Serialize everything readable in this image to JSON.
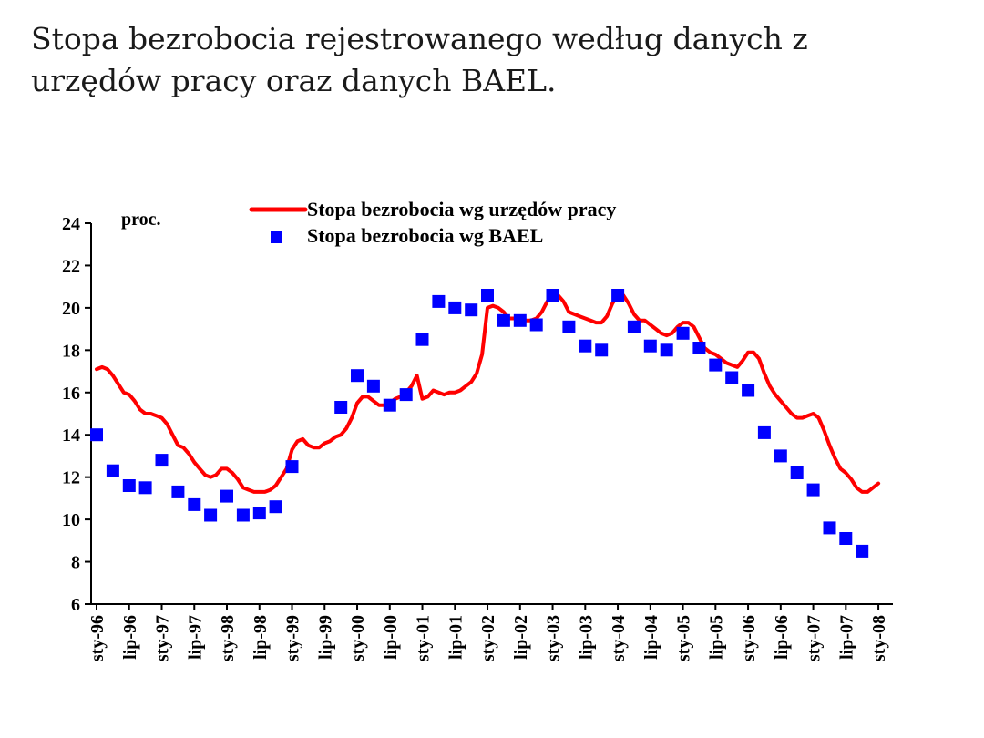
{
  "title": {
    "line1": "Stopa bezrobocia rejestrowanego według danych z",
    "line2": "urzędów pracy oraz danych BAEL."
  },
  "chart_data": {
    "type": "line",
    "unit_label": "proc.",
    "ylim": [
      6,
      24
    ],
    "yticks": [
      6,
      8,
      10,
      12,
      14,
      16,
      18,
      20,
      22,
      24
    ],
    "xlim_months": [
      0,
      146
    ],
    "xticks": [
      {
        "label": "sty-96",
        "m": 0
      },
      {
        "label": "lip-96",
        "m": 6
      },
      {
        "label": "sty-97",
        "m": 12
      },
      {
        "label": "lip-97",
        "m": 18
      },
      {
        "label": "sty-98",
        "m": 24
      },
      {
        "label": "lip-98",
        "m": 30
      },
      {
        "label": "sty-99",
        "m": 36
      },
      {
        "label": "lip-99",
        "m": 42
      },
      {
        "label": "sty-00",
        "m": 48
      },
      {
        "label": "lip-00",
        "m": 54
      },
      {
        "label": "sty-01",
        "m": 60
      },
      {
        "label": "lip-01",
        "m": 66
      },
      {
        "label": "sty-02",
        "m": 72
      },
      {
        "label": "lip-02",
        "m": 78
      },
      {
        "label": "sty-03",
        "m": 84
      },
      {
        "label": "lip-03",
        "m": 90
      },
      {
        "label": "sty-04",
        "m": 96
      },
      {
        "label": "lip-04",
        "m": 102
      },
      {
        "label": "sty-05",
        "m": 108
      },
      {
        "label": "lip-05",
        "m": 114
      },
      {
        "label": "sty-06",
        "m": 120
      },
      {
        "label": "lip-06",
        "m": 126
      },
      {
        "label": "sty-07",
        "m": 132
      },
      {
        "label": "lip-07",
        "m": 138
      },
      {
        "label": "sty-08",
        "m": 144
      }
    ],
    "legend_placement": "top-center",
    "series": [
      {
        "name": "Stopa bezrobocia wg urzędów pracy",
        "kind": "line",
        "color": "#ff0000",
        "points": [
          [
            0,
            17.1
          ],
          [
            1,
            17.2
          ],
          [
            2,
            17.1
          ],
          [
            3,
            16.8
          ],
          [
            4,
            16.4
          ],
          [
            5,
            16.0
          ],
          [
            6,
            15.9
          ],
          [
            7,
            15.6
          ],
          [
            8,
            15.2
          ],
          [
            9,
            15.0
          ],
          [
            10,
            15.0
          ],
          [
            11,
            14.9
          ],
          [
            12,
            14.8
          ],
          [
            13,
            14.5
          ],
          [
            14,
            14.0
          ],
          [
            15,
            13.5
          ],
          [
            16,
            13.4
          ],
          [
            17,
            13.1
          ],
          [
            18,
            12.7
          ],
          [
            19,
            12.4
          ],
          [
            20,
            12.1
          ],
          [
            21,
            12.0
          ],
          [
            22,
            12.1
          ],
          [
            23,
            12.4
          ],
          [
            24,
            12.4
          ],
          [
            25,
            12.2
          ],
          [
            26,
            11.9
          ],
          [
            27,
            11.5
          ],
          [
            28,
            11.4
          ],
          [
            29,
            11.3
          ],
          [
            30,
            11.3
          ],
          [
            31,
            11.3
          ],
          [
            32,
            11.4
          ],
          [
            33,
            11.6
          ],
          [
            34,
            12.0
          ],
          [
            35,
            12.4
          ],
          [
            36,
            13.3
          ],
          [
            37,
            13.7
          ],
          [
            38,
            13.8
          ],
          [
            39,
            13.5
          ],
          [
            40,
            13.4
          ],
          [
            41,
            13.4
          ],
          [
            42,
            13.6
          ],
          [
            43,
            13.7
          ],
          [
            44,
            13.9
          ],
          [
            45,
            14.0
          ],
          [
            46,
            14.3
          ],
          [
            47,
            14.8
          ],
          [
            48,
            15.5
          ],
          [
            49,
            15.8
          ],
          [
            50,
            15.8
          ],
          [
            51,
            15.6
          ],
          [
            52,
            15.4
          ],
          [
            53,
            15.4
          ],
          [
            54,
            15.5
          ],
          [
            55,
            15.7
          ],
          [
            56,
            15.8
          ],
          [
            57,
            16.0
          ],
          [
            58,
            16.3
          ],
          [
            59,
            16.8
          ],
          [
            60,
            15.7
          ],
          [
            61,
            15.8
          ],
          [
            62,
            16.1
          ],
          [
            63,
            16.0
          ],
          [
            64,
            15.9
          ],
          [
            65,
            16.0
          ],
          [
            66,
            16.0
          ],
          [
            67,
            16.1
          ],
          [
            68,
            16.3
          ],
          [
            69,
            16.5
          ],
          [
            70,
            16.9
          ],
          [
            71,
            17.8
          ],
          [
            72,
            20.0
          ],
          [
            73,
            20.1
          ],
          [
            74,
            20.0
          ],
          [
            75,
            19.8
          ],
          [
            76,
            19.5
          ],
          [
            77,
            19.5
          ],
          [
            78,
            19.5
          ],
          [
            79,
            19.4
          ],
          [
            80,
            19.4
          ],
          [
            81,
            19.5
          ],
          [
            82,
            19.8
          ],
          [
            83,
            20.3
          ],
          [
            84,
            20.7
          ],
          [
            85,
            20.6
          ],
          [
            86,
            20.3
          ],
          [
            87,
            19.8
          ],
          [
            88,
            19.7
          ],
          [
            89,
            19.6
          ],
          [
            90,
            19.5
          ],
          [
            91,
            19.4
          ],
          [
            92,
            19.3
          ],
          [
            93,
            19.3
          ],
          [
            94,
            19.6
          ],
          [
            95,
            20.2
          ],
          [
            96,
            20.6
          ],
          [
            97,
            20.6
          ],
          [
            98,
            20.2
          ],
          [
            99,
            19.7
          ],
          [
            100,
            19.4
          ],
          [
            101,
            19.4
          ],
          [
            102,
            19.2
          ],
          [
            103,
            19.0
          ],
          [
            104,
            18.8
          ],
          [
            105,
            18.7
          ],
          [
            106,
            18.8
          ],
          [
            107,
            19.1
          ],
          [
            108,
            19.3
          ],
          [
            109,
            19.3
          ],
          [
            110,
            19.1
          ],
          [
            111,
            18.6
          ],
          [
            112,
            18.1
          ],
          [
            113,
            17.9
          ],
          [
            114,
            17.8
          ],
          [
            115,
            17.6
          ],
          [
            116,
            17.4
          ],
          [
            117,
            17.3
          ],
          [
            118,
            17.2
          ],
          [
            119,
            17.5
          ],
          [
            120,
            17.9
          ],
          [
            121,
            17.9
          ],
          [
            122,
            17.6
          ],
          [
            123,
            16.9
          ],
          [
            124,
            16.3
          ],
          [
            125,
            15.9
          ],
          [
            126,
            15.6
          ],
          [
            127,
            15.3
          ],
          [
            128,
            15.0
          ],
          [
            129,
            14.8
          ],
          [
            130,
            14.8
          ],
          [
            131,
            14.9
          ],
          [
            132,
            15.0
          ],
          [
            133,
            14.8
          ],
          [
            134,
            14.2
          ],
          [
            135,
            13.5
          ],
          [
            136,
            12.9
          ],
          [
            137,
            12.4
          ],
          [
            138,
            12.2
          ],
          [
            139,
            11.9
          ],
          [
            140,
            11.5
          ],
          [
            141,
            11.3
          ],
          [
            142,
            11.3
          ],
          [
            143,
            11.5
          ],
          [
            144,
            11.7
          ]
        ]
      },
      {
        "name": "Stopa bezrobocia wg BAEL",
        "kind": "scatter",
        "color": "#0000ff",
        "points": [
          [
            0,
            14.0
          ],
          [
            3,
            12.3
          ],
          [
            6,
            11.6
          ],
          [
            9,
            11.5
          ],
          [
            12,
            12.8
          ],
          [
            15,
            11.3
          ],
          [
            18,
            10.7
          ],
          [
            21,
            10.2
          ],
          [
            24,
            11.1
          ],
          [
            27,
            10.2
          ],
          [
            30,
            10.3
          ],
          [
            33,
            10.6
          ],
          [
            36,
            12.5
          ],
          [
            45,
            15.3
          ],
          [
            48,
            16.8
          ],
          [
            51,
            16.3
          ],
          [
            54,
            15.4
          ],
          [
            57,
            15.9
          ],
          [
            60,
            18.5
          ],
          [
            63,
            20.3
          ],
          [
            66,
            20.0
          ],
          [
            69,
            19.9
          ],
          [
            72,
            20.6
          ],
          [
            75,
            19.4
          ],
          [
            78,
            19.4
          ],
          [
            81,
            19.2
          ],
          [
            84,
            20.6
          ],
          [
            87,
            19.1
          ],
          [
            90,
            18.2
          ],
          [
            93,
            18.0
          ],
          [
            96,
            20.6
          ],
          [
            99,
            19.1
          ],
          [
            102,
            18.2
          ],
          [
            105,
            18.0
          ],
          [
            108,
            18.8
          ],
          [
            111,
            18.1
          ],
          [
            114,
            17.3
          ],
          [
            117,
            16.7
          ],
          [
            120,
            16.1
          ],
          [
            123,
            14.1
          ],
          [
            126,
            13.0
          ],
          [
            129,
            12.2
          ],
          [
            132,
            11.4
          ],
          [
            135,
            9.6
          ],
          [
            138,
            9.1
          ],
          [
            141,
            8.5
          ]
        ]
      }
    ]
  }
}
